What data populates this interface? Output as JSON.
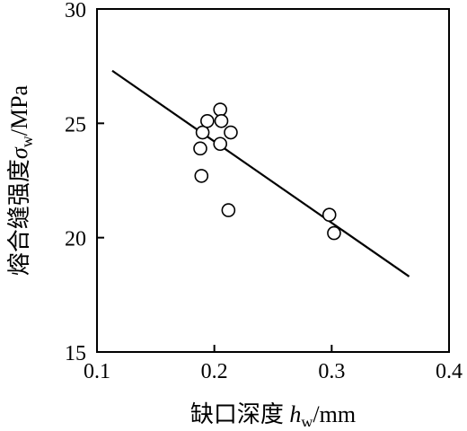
{
  "chart_data": {
    "type": "scatter",
    "title": "",
    "xlabel": {
      "prefix": "缺口深度 ",
      "var": "h",
      "sub": "w",
      "unit": "/mm"
    },
    "ylabel": {
      "prefix": "熔合缝强度",
      "var": "σ",
      "sub": "w",
      "unit": "/MPa"
    },
    "xlim": [
      0.1,
      0.4
    ],
    "ylim": [
      15,
      30
    ],
    "xticks": [
      0.1,
      0.2,
      0.3,
      0.4
    ],
    "xtick_labels": [
      "0.1",
      "0.2",
      "0.3",
      "0.4"
    ],
    "yticks": [
      15,
      20,
      25,
      30
    ],
    "ytick_labels": [
      "15",
      "20",
      "25",
      "30"
    ],
    "grid": false,
    "series": [
      {
        "marker": "open-circle",
        "points": [
          {
            "x": 0.188,
            "y": 23.9
          },
          {
            "x": 0.19,
            "y": 24.6
          },
          {
            "x": 0.194,
            "y": 25.1
          },
          {
            "x": 0.205,
            "y": 25.6
          },
          {
            "x": 0.206,
            "y": 25.1
          },
          {
            "x": 0.214,
            "y": 24.6
          },
          {
            "x": 0.205,
            "y": 24.1
          },
          {
            "x": 0.189,
            "y": 22.7
          },
          {
            "x": 0.212,
            "y": 21.2
          },
          {
            "x": 0.298,
            "y": 21.0
          },
          {
            "x": 0.302,
            "y": 20.2
          }
        ]
      }
    ],
    "fit_line": {
      "points": [
        {
          "x": 0.113,
          "y": 27.3
        },
        {
          "x": 0.366,
          "y": 18.3
        }
      ]
    },
    "colors": {
      "axis": "#000000",
      "line": "#000000",
      "marker_fill": "#ffffff"
    }
  }
}
